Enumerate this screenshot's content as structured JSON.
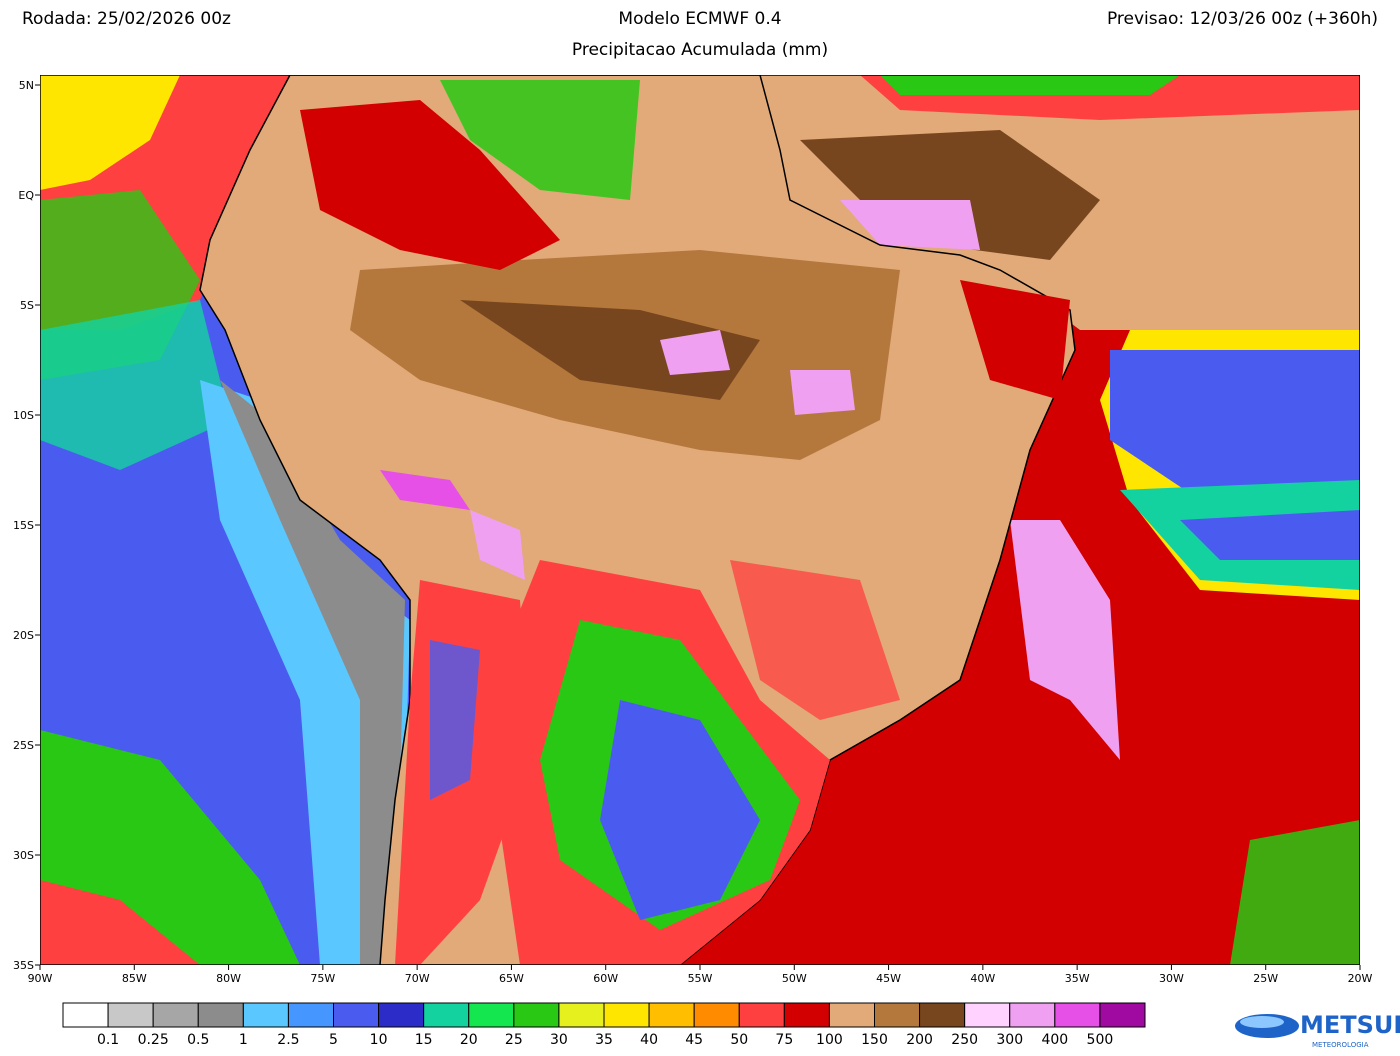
{
  "header": {
    "left": "Rodada: 25/02/2026 00z",
    "center": "Modelo ECMWF 0.4",
    "right": "Previsao: 12/03/26 00z (+360h)",
    "subtitle": "Precipitacao Acumulada (mm)"
  },
  "map": {
    "lat_labels": [
      "5N",
      "EQ",
      "5S",
      "10S",
      "15S",
      "20S",
      "25S",
      "30S",
      "35S"
    ],
    "lon_labels": [
      "90W",
      "85W",
      "80W",
      "75W",
      "70W",
      "65W",
      "60W",
      "55W",
      "50W",
      "45W",
      "40W",
      "35W",
      "30W",
      "25W",
      "20W"
    ]
  },
  "legend": {
    "colors": [
      "#ffffff",
      "#c8c8c8",
      "#a6a6a6",
      "#8c8c8c",
      "#5ac8ff",
      "#4696ff",
      "#4a5cf0",
      "#2c2cc8",
      "#14d2a0",
      "#14e650",
      "#28c814",
      "#e6f01e",
      "#ffe600",
      "#ffbe00",
      "#ff8c00",
      "#ff4040",
      "#d20000",
      "#e1aa78",
      "#b4783c",
      "#78461e",
      "#ffd2ff",
      "#f0a0f0",
      "#e650e6",
      "#a00aa0"
    ],
    "labels": [
      "0.1",
      "0.25",
      "0.5",
      "1",
      "2.5",
      "5",
      "10",
      "15",
      "20",
      "25",
      "30",
      "35",
      "40",
      "45",
      "50",
      "75",
      "100",
      "150",
      "200",
      "250",
      "300",
      "400",
      "500"
    ]
  },
  "logo": {
    "name": "METSUL",
    "tagline": "METEOROLOGIA"
  }
}
